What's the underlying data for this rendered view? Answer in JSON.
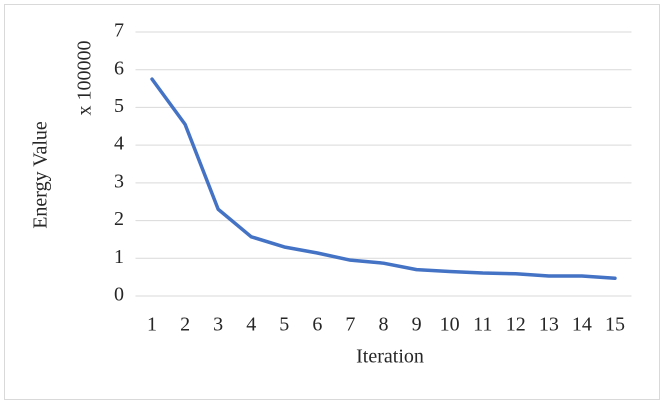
{
  "chart_data": {
    "type": "line",
    "y_label": "Energy Value",
    "y_unit_label": "x 100000",
    "x_label": "Iteration",
    "categories": [
      "1",
      "2",
      "3",
      "4",
      "5",
      "6",
      "7",
      "8",
      "9",
      "10",
      "11",
      "12",
      "13",
      "14",
      "15"
    ],
    "series": [
      {
        "name": "Energy Value",
        "color": "#4472c4",
        "values": [
          5.75,
          4.55,
          2.3,
          1.57,
          1.3,
          1.14,
          0.95,
          0.87,
          0.7,
          0.65,
          0.61,
          0.59,
          0.53,
          0.53,
          0.47
        ]
      }
    ],
    "ylim": [
      0,
      7
    ],
    "yticks": [
      0,
      1,
      2,
      3,
      4,
      5,
      6,
      7
    ],
    "grid": true
  }
}
